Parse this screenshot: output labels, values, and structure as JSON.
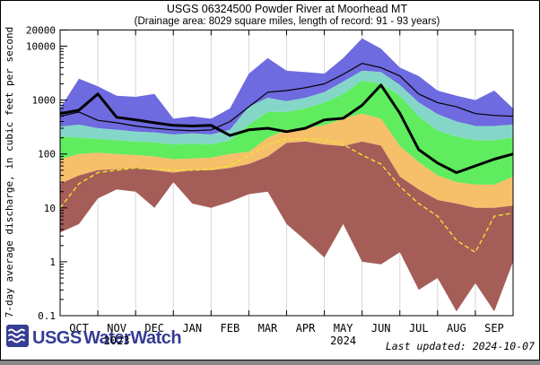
{
  "title": "USGS 06324500 Powder River at Moorhead MT",
  "subtitle": "(Drainage area: 8029 square miles, length of record: 91 - 93 years)",
  "footer": {
    "logo_usgs": "USGS",
    "logo_waterwatch": "WaterWatch",
    "logo_color": "#363d94",
    "last_updated": "Last updated: 2024-10-07"
  },
  "chart_data": {
    "type": "area",
    "title": "USGS 06324500 Powder River at Moorhead MT",
    "subtitle": "(Drainage area: 8029 square miles, length of record: 91 - 93 years)",
    "ylabel": "7-day average discharge, in cubic feet per second",
    "xlabel": "",
    "grid": "vertical-month-lines",
    "yaxis": {
      "scale": "log",
      "min": 0.1,
      "max": 20000,
      "labeled_ticks": [
        0.1,
        1,
        10,
        100,
        1000,
        10000,
        20000
      ]
    },
    "x_month_labels": [
      "OCT",
      "NOV",
      "DEC",
      "JAN",
      "FEB",
      "MAR",
      "APR",
      "MAY",
      "JUN",
      "JUL",
      "AUG",
      "SEP"
    ],
    "year_labels": [
      {
        "month_index": 1,
        "label": "2023"
      },
      {
        "month_index": 7,
        "label": "2024"
      }
    ],
    "sample_dates": [
      "Oct 1",
      "Oct 16",
      "Nov 1",
      "Nov 16",
      "Dec 1",
      "Dec 16",
      "Jan 1",
      "Jan 16",
      "Feb 1",
      "Feb 15",
      "Mar 1",
      "Mar 16",
      "Apr 1",
      "Apr 16",
      "May 1",
      "May 16",
      "Jun 1",
      "Jun 16",
      "Jul 1",
      "Jul 16",
      "Aug 1",
      "Aug 16",
      "Sep 1",
      "Sep 16",
      "Sep 30"
    ],
    "series": {
      "max": [
        700,
        2500,
        1800,
        1200,
        1150,
        1300,
        450,
        500,
        450,
        700,
        3100,
        6000,
        3500,
        3300,
        3100,
        6000,
        14000,
        9000,
        4000,
        2800,
        1500,
        1200,
        1000,
        1500,
        700
      ],
      "p90": [
        320,
        350,
        300,
        280,
        260,
        250,
        230,
        240,
        230,
        280,
        750,
        1100,
        950,
        1100,
        1400,
        2200,
        3500,
        3300,
        1900,
        900,
        550,
        400,
        330,
        330,
        350
      ],
      "p75": [
        210,
        200,
        190,
        180,
        170,
        165,
        150,
        155,
        150,
        180,
        350,
        600,
        600,
        700,
        900,
        1300,
        2300,
        2000,
        1200,
        500,
        270,
        210,
        180,
        180,
        200
      ],
      "p25": [
        80,
        100,
        105,
        100,
        95,
        90,
        80,
        82,
        85,
        100,
        110,
        200,
        280,
        300,
        340,
        450,
        560,
        450,
        140,
        70,
        40,
        30,
        27,
        27,
        38
      ],
      "p10": [
        28,
        40,
        50,
        52,
        55,
        50,
        45,
        50,
        50,
        55,
        65,
        90,
        160,
        170,
        150,
        140,
        170,
        143,
        38,
        22,
        14,
        12,
        10,
        10,
        11
      ],
      "min": [
        3.5,
        5,
        15,
        22,
        20,
        10,
        30,
        12,
        10,
        13,
        18,
        20,
        5,
        2.5,
        1.2,
        5,
        1,
        0.9,
        1.5,
        0.3,
        0.5,
        0.12,
        0.4,
        0.12,
        1
      ],
      "current_year": [
        560,
        650,
        1300,
        480,
        430,
        380,
        340,
        330,
        340,
        220,
        280,
        300,
        260,
        300,
        430,
        460,
        800,
        1900,
        570,
        120,
        68,
        45,
        60,
        80,
        100
      ],
      "thin_black": [
        500,
        600,
        420,
        380,
        330,
        300,
        280,
        270,
        280,
        400,
        750,
        1400,
        1500,
        1700,
        2000,
        3000,
        4800,
        4000,
        2800,
        1300,
        900,
        750,
        560,
        520,
        500
      ],
      "yellow": [
        10,
        28,
        45,
        50,
        55,
        52,
        50,
        50,
        52,
        60,
        95,
        150,
        190,
        190,
        185,
        150,
        95,
        65,
        25,
        12,
        7,
        2.5,
        1.5,
        7,
        8
      ]
    },
    "bands": [
      {
        "name": "much-above-normal",
        "upper": "max",
        "lower": "p90",
        "color": "#6e6adf"
      },
      {
        "name": "above-normal",
        "upper": "p90",
        "lower": "p75",
        "color": "#84d7c8"
      },
      {
        "name": "normal",
        "upper": "p75",
        "lower": "p25",
        "color": "#5fec5f"
      },
      {
        "name": "below-normal",
        "upper": "p25",
        "lower": "p10",
        "color": "#f6bf6a"
      },
      {
        "name": "much-below-normal",
        "upper": "p10",
        "lower": "min",
        "color": "#a55d58"
      }
    ],
    "lines": [
      {
        "name": "yellow-line",
        "series": "yellow",
        "color": "#f0e430",
        "width": 1.4,
        "dash": "5 3"
      },
      {
        "name": "thin-black-line",
        "series": "thin_black",
        "color": "#000000",
        "width": 1.2,
        "dash": ""
      },
      {
        "name": "current-year-line",
        "series": "current_year",
        "color": "#000000",
        "width": 3,
        "dash": ""
      }
    ],
    "colors": {
      "gridline": "#d8d8d8",
      "axis": "#000000",
      "background": "#ffffff"
    }
  }
}
